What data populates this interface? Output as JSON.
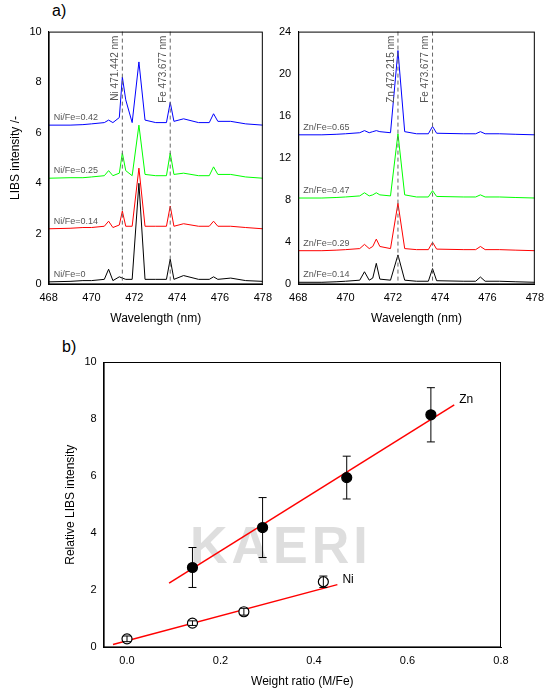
{
  "panel_labels": [
    "a)",
    "b)"
  ],
  "watermark": "KAERI",
  "chart_data": [
    {
      "type": "line",
      "x_label": "Wavelength (nm)",
      "y_label": "LIBS intensity /-",
      "xlim": [
        468,
        478
      ],
      "xticks": [
        468,
        470,
        472,
        474,
        476,
        478
      ],
      "ylim": [
        0,
        10
      ],
      "yticks": [
        0,
        2,
        4,
        6,
        8,
        10
      ],
      "grid": false,
      "annotations": [
        {
          "text": "Ni 471.442 nm",
          "x": 471.442
        },
        {
          "text": "Fe 473.677 nm",
          "x": 473.677
        }
      ],
      "x": [
        468,
        469,
        469.6,
        470.0,
        470.6,
        470.8,
        471.0,
        471.3,
        471.442,
        471.6,
        471.9,
        472.215,
        472.5,
        473.0,
        473.5,
        473.677,
        473.85,
        474.3,
        475.0,
        475.5,
        475.7,
        475.9,
        476.5,
        477.2,
        478
      ],
      "series": [
        {
          "name": "Ni/Fe=0",
          "color": "#000000",
          "values": [
            0.1,
            0.12,
            0.15,
            0.15,
            0.2,
            0.6,
            0.15,
            0.3,
            0.25,
            0.2,
            0.2,
            4.0,
            0.2,
            0.2,
            0.2,
            1.0,
            0.2,
            0.35,
            0.2,
            0.2,
            0.3,
            0.2,
            0.25,
            0.15,
            0.12
          ]
        },
        {
          "name": "Ni/Fe=0.14",
          "color": "#ff0000",
          "values": [
            2.2,
            2.22,
            2.25,
            2.25,
            2.3,
            2.5,
            2.25,
            2.35,
            2.9,
            2.3,
            2.3,
            4.6,
            2.3,
            2.3,
            2.3,
            3.1,
            2.3,
            2.4,
            2.3,
            2.3,
            2.5,
            2.3,
            2.3,
            2.25,
            2.2
          ]
        },
        {
          "name": "Ni/Fe=0.25",
          "color": "#00ff00",
          "values": [
            4.2,
            4.22,
            4.22,
            4.25,
            4.3,
            4.5,
            4.3,
            4.4,
            5.2,
            4.5,
            4.3,
            6.3,
            4.35,
            4.3,
            4.3,
            5.2,
            4.35,
            4.4,
            4.3,
            4.3,
            4.65,
            4.35,
            4.35,
            4.25,
            4.2
          ]
        },
        {
          "name": "Ni/Fe=0.42",
          "color": "#0000ff",
          "values": [
            6.3,
            6.3,
            6.32,
            6.35,
            6.4,
            6.5,
            6.4,
            6.6,
            8.2,
            7.3,
            6.4,
            8.8,
            6.5,
            6.4,
            6.4,
            7.2,
            6.45,
            6.55,
            6.4,
            6.4,
            6.75,
            6.45,
            6.45,
            6.35,
            6.3
          ]
        }
      ]
    },
    {
      "type": "line",
      "x_label": "Wavelength (nm)",
      "xlim": [
        468,
        478
      ],
      "xticks": [
        468,
        470,
        472,
        474,
        476,
        478
      ],
      "ylim": [
        0,
        24
      ],
      "yticks": [
        0,
        4,
        8,
        12,
        16,
        20,
        24
      ],
      "grid": false,
      "annotations": [
        {
          "text": "Zn 472.215 nm",
          "x": 472.215
        },
        {
          "text": "Fe 473.677 nm",
          "x": 473.677
        }
      ],
      "x": [
        468,
        469,
        469.6,
        470.0,
        470.6,
        470.8,
        471.0,
        471.15,
        471.3,
        471.45,
        471.9,
        472.215,
        472.5,
        473.0,
        473.5,
        473.677,
        473.85,
        475.0,
        475.5,
        475.7,
        475.9,
        476.5,
        477.2,
        478
      ],
      "series": [
        {
          "name": "Zn/Fe=0.14",
          "color": "#000000",
          "values": [
            0.2,
            0.2,
            0.25,
            0.3,
            0.4,
            1.2,
            0.4,
            0.6,
            2.0,
            0.5,
            0.4,
            2.8,
            0.4,
            0.3,
            0.3,
            1.5,
            0.35,
            0.3,
            0.3,
            0.7,
            0.3,
            0.3,
            0.25,
            0.2
          ]
        },
        {
          "name": "Zn/Fe=0.29",
          "color": "#ff0000",
          "values": [
            3.2,
            3.2,
            3.25,
            3.3,
            3.4,
            3.8,
            3.4,
            3.6,
            4.3,
            3.6,
            3.4,
            7.7,
            3.4,
            3.3,
            3.3,
            4.0,
            3.35,
            3.3,
            3.3,
            3.6,
            3.3,
            3.3,
            3.25,
            3.2
          ]
        },
        {
          "name": "Zn/Fe=0.47",
          "color": "#00ff00",
          "values": [
            8.2,
            8.2,
            8.25,
            8.3,
            8.4,
            8.7,
            8.4,
            8.5,
            8.7,
            8.5,
            8.4,
            14.3,
            8.5,
            8.3,
            8.3,
            8.9,
            8.35,
            8.3,
            8.3,
            8.5,
            8.3,
            8.3,
            8.25,
            8.2
          ]
        },
        {
          "name": "Zn/Fe=0.65",
          "color": "#0000ff",
          "values": [
            14.2,
            14.2,
            14.25,
            14.3,
            14.4,
            14.6,
            14.4,
            14.5,
            14.6,
            14.5,
            14.4,
            22.2,
            14.5,
            14.3,
            14.3,
            15.0,
            14.35,
            14.3,
            14.3,
            14.5,
            14.3,
            14.3,
            14.25,
            14.2
          ]
        }
      ]
    },
    {
      "type": "scatter",
      "x_label": "Weight ratio (M/Fe)",
      "y_label": "Relative LIBS intensity",
      "xlim": [
        -0.05,
        0.8
      ],
      "xticks": [
        {
          "value": 0,
          "label": "0.0"
        },
        {
          "value": 0.2,
          "label": "0.2"
        },
        {
          "value": 0.4,
          "label": "0.4"
        },
        {
          "value": 0.6,
          "label": "0.6"
        },
        {
          "value": 0.8,
          "label": "0.8"
        }
      ],
      "ylim": [
        0,
        10
      ],
      "yticks": [
        0,
        2,
        4,
        6,
        8,
        10
      ],
      "grid": false,
      "series": [
        {
          "name": "Zn",
          "color": "#000000",
          "marker": "circle",
          "x": [
            0.14,
            0.29,
            0.47,
            0.65
          ],
          "values": [
            2.8,
            4.2,
            5.95,
            8.15
          ],
          "errors": [
            0.7,
            1.05,
            0.75,
            0.95
          ],
          "fit": {
            "color": "#ff0000",
            "x": [
              0.09,
              0.7
            ],
            "values": [
              2.25,
              8.5
            ]
          }
        },
        {
          "name": "Ni",
          "color": "#000000",
          "marker": "circle_open",
          "x": [
            0,
            0.14,
            0.25,
            0.42
          ],
          "values": [
            0.3,
            0.85,
            1.25,
            2.3
          ],
          "errors": [
            0.1,
            0.08,
            0.12,
            0.2
          ],
          "fit": {
            "color": "#ff0000",
            "x": [
              -0.03,
              0.45
            ],
            "values": [
              0.1,
              2.2
            ]
          }
        }
      ]
    }
  ]
}
